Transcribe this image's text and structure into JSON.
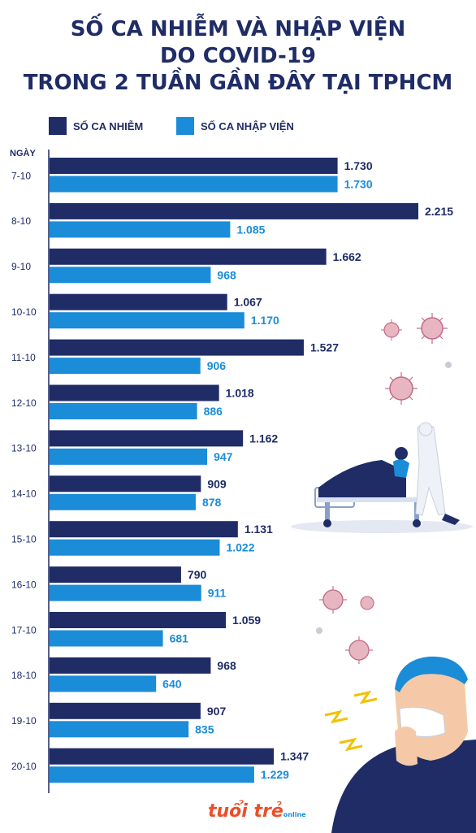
{
  "title_lines": [
    "SỐ CA NHIỄM VÀ NHẬP VIỆN",
    "DO COVID-19",
    "TRONG 2 TUẦN GẦN ĐÂY TẠI TPHCM"
  ],
  "colors": {
    "title": "#1f2c66",
    "infected": "#1f2c66",
    "hospitalized": "#1a8cd8",
    "axis": "#1f2c66",
    "label": "#1f2c66"
  },
  "logo": {
    "main": "tuổi trẻ",
    "sub": "online"
  },
  "chart_data": {
    "type": "bar",
    "orientation": "horizontal",
    "xlabel": "",
    "ylabel": "NGÀY",
    "categories": [
      "7-10",
      "8-10",
      "9-10",
      "10-10",
      "11-10",
      "12-10",
      "13-10",
      "14-10",
      "15-10",
      "16-10",
      "17-10",
      "18-10",
      "19-10",
      "20-10"
    ],
    "series": [
      {
        "name": "SỐ CA NHIỄM",
        "color": "#1f2c66",
        "values": [
          1730,
          2215,
          1662,
          1067,
          1527,
          1018,
          1162,
          909,
          1131,
          790,
          1059,
          968,
          907,
          1347
        ],
        "labels": [
          "1.730",
          "2.215",
          "1.662",
          "1.067",
          "1.527",
          "1.018",
          "1.162",
          "909",
          "1.131",
          "790",
          "1.059",
          "968",
          "907",
          "1.347"
        ]
      },
      {
        "name": "SỐ CA NHẬP VIỆN",
        "color": "#1a8cd8",
        "values": [
          1730,
          1085,
          968,
          1170,
          906,
          886,
          947,
          878,
          1022,
          911,
          681,
          640,
          835,
          1229
        ],
        "labels": [
          "1.730",
          "1.085",
          "968",
          "1.170",
          "906",
          "886",
          "947",
          "878",
          "1.022",
          "911",
          "681",
          "640",
          "835",
          "1.229"
        ]
      }
    ],
    "legend_position": "top-left",
    "grid": false
  }
}
